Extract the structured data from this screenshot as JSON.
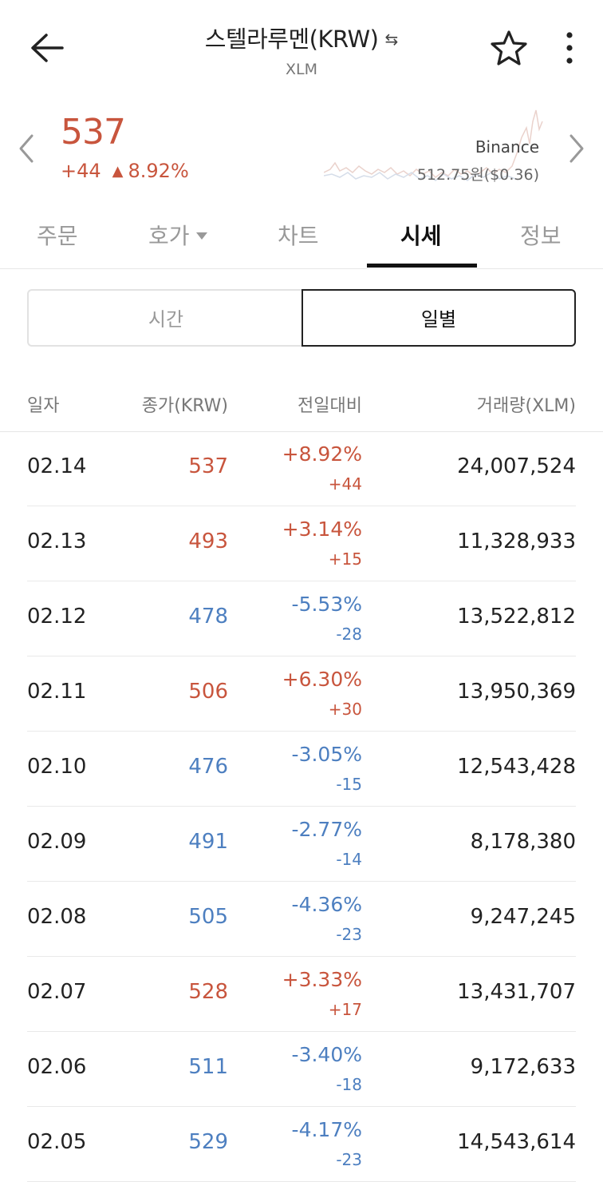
{
  "header": {
    "title": "스텔라루멘(KRW)",
    "swap_glyph": "⇆",
    "symbol": "XLM"
  },
  "quote": {
    "price": "537",
    "change_abs": "+44",
    "change_pct": "8.92%",
    "direction_glyph": "▲",
    "exchange": "Binance",
    "exchange_price": "512.75원($0.36)"
  },
  "tabs": [
    {
      "label": "주문"
    },
    {
      "label": "호가"
    },
    {
      "label": "차트"
    },
    {
      "label": "시세"
    },
    {
      "label": "정보"
    }
  ],
  "segment": {
    "left": "시간",
    "right": "일별"
  },
  "table": {
    "headers": [
      "일자",
      "종가(KRW)",
      "전일대비",
      "거래량(XLM)"
    ],
    "rows": [
      {
        "date": "02.14",
        "close": "537",
        "pct": "+8.92%",
        "abs": "+44",
        "vol": "24,007,524",
        "dir": "up"
      },
      {
        "date": "02.13",
        "close": "493",
        "pct": "+3.14%",
        "abs": "+15",
        "vol": "11,328,933",
        "dir": "up"
      },
      {
        "date": "02.12",
        "close": "478",
        "pct": "-5.53%",
        "abs": "-28",
        "vol": "13,522,812",
        "dir": "down"
      },
      {
        "date": "02.11",
        "close": "506",
        "pct": "+6.30%",
        "abs": "+30",
        "vol": "13,950,369",
        "dir": "up"
      },
      {
        "date": "02.10",
        "close": "476",
        "pct": "-3.05%",
        "abs": "-15",
        "vol": "12,543,428",
        "dir": "down"
      },
      {
        "date": "02.09",
        "close": "491",
        "pct": "-2.77%",
        "abs": "-14",
        "vol": "8,178,380",
        "dir": "down"
      },
      {
        "date": "02.08",
        "close": "505",
        "pct": "-4.36%",
        "abs": "-23",
        "vol": "9,247,245",
        "dir": "down"
      },
      {
        "date": "02.07",
        "close": "528",
        "pct": "+3.33%",
        "abs": "+17",
        "vol": "13,431,707",
        "dir": "up"
      },
      {
        "date": "02.06",
        "close": "511",
        "pct": "-3.40%",
        "abs": "-18",
        "vol": "9,172,633",
        "dir": "down"
      },
      {
        "date": "02.05",
        "close": "529",
        "pct": "-4.17%",
        "abs": "-23",
        "vol": "14,543,614",
        "dir": "down"
      }
    ]
  },
  "icons": {
    "back": "back-arrow-icon",
    "star": "star-icon",
    "more": "more-vertical-icon",
    "prev": "chevron-left-icon",
    "next": "chevron-right-icon"
  },
  "colors": {
    "up": "#c8553d",
    "down": "#4d7fc0"
  }
}
